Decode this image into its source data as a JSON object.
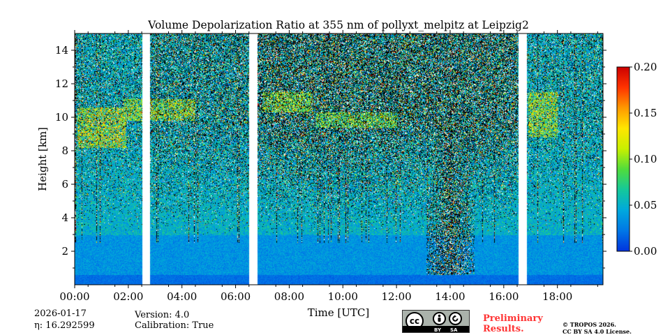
{
  "chart_data": {
    "type": "heatmap",
    "title": "Volume Depolarization Ratio at 355 nm of pollyxt_melpitz at Leipzig2",
    "xlabel": "Time [UTC]",
    "ylabel": "Height [km]",
    "xlim_hours": [
      0,
      19.7
    ],
    "ylim_km": [
      0,
      15
    ],
    "x_ticks": [
      {
        "v": 0,
        "label": "00:00"
      },
      {
        "v": 2,
        "label": "02:00"
      },
      {
        "v": 4,
        "label": "04:00"
      },
      {
        "v": 6,
        "label": "06:00"
      },
      {
        "v": 8,
        "label": "08:00"
      },
      {
        "v": 10,
        "label": "10:00"
      },
      {
        "v": 12,
        "label": "12:00"
      },
      {
        "v": 14,
        "label": "14:00"
      },
      {
        "v": 16,
        "label": "16:00"
      },
      {
        "v": 18,
        "label": "18:00"
      }
    ],
    "y_ticks": [
      {
        "v": 2,
        "label": "2"
      },
      {
        "v": 4,
        "label": "4"
      },
      {
        "v": 6,
        "label": "6"
      },
      {
        "v": 8,
        "label": "8"
      },
      {
        "v": 10,
        "label": "10"
      },
      {
        "v": 12,
        "label": "12"
      },
      {
        "v": 14,
        "label": "14"
      }
    ],
    "colorbar": {
      "min": 0,
      "max": 0.2,
      "ticks": [
        {
          "v": 0,
          "label": "0.00"
        },
        {
          "v": 0.05,
          "label": "0.05"
        },
        {
          "v": 0.1,
          "label": "0.10"
        },
        {
          "v": 0.15,
          "label": "0.15"
        },
        {
          "v": 0.2,
          "label": "0.20"
        }
      ],
      "colors": [
        "#0033dd",
        "#0077e6",
        "#00a8dd",
        "#14c89b",
        "#50dc3c",
        "#c8f000",
        "#ffe600",
        "#ff9900",
        "#ff3300",
        "#cc0000"
      ]
    },
    "data_gaps_hours": [
      [
        2.5,
        2.8
      ],
      [
        6.5,
        6.8
      ],
      [
        16.55,
        16.85
      ]
    ],
    "cirrus_layers": [
      {
        "start": 0.1,
        "end": 1.9,
        "base_km": 8.2,
        "top_km": 10.6,
        "depol": 0.13
      },
      {
        "start": 1.8,
        "end": 4.5,
        "base_km": 9.8,
        "top_km": 11.1,
        "depol": 0.12
      },
      {
        "start": 7.0,
        "end": 8.8,
        "base_km": 10.3,
        "top_km": 11.5,
        "depol": 0.11
      },
      {
        "start": 9.0,
        "end": 12.0,
        "base_km": 9.4,
        "top_km": 10.3,
        "depol": 0.1
      },
      {
        "start": 16.9,
        "end": 18.0,
        "base_km": 8.8,
        "top_km": 11.5,
        "depol": 0.12
      }
    ],
    "low_signal_column_hour": 14.0
  },
  "metadata": {
    "date": "2026-01-17",
    "eta": "η: 16.292599",
    "version": "Version: 4.0",
    "calibration": "Calibration: True"
  },
  "license": {
    "badge_cc": "cc",
    "badge_by": "BY",
    "badge_sa": "SA",
    "preliminary_line1": "Preliminary",
    "preliminary_line2": "Results.",
    "copyright_line1": "© TROPOS 2026.",
    "copyright_line2": "CC BY SA 4.0 License."
  }
}
